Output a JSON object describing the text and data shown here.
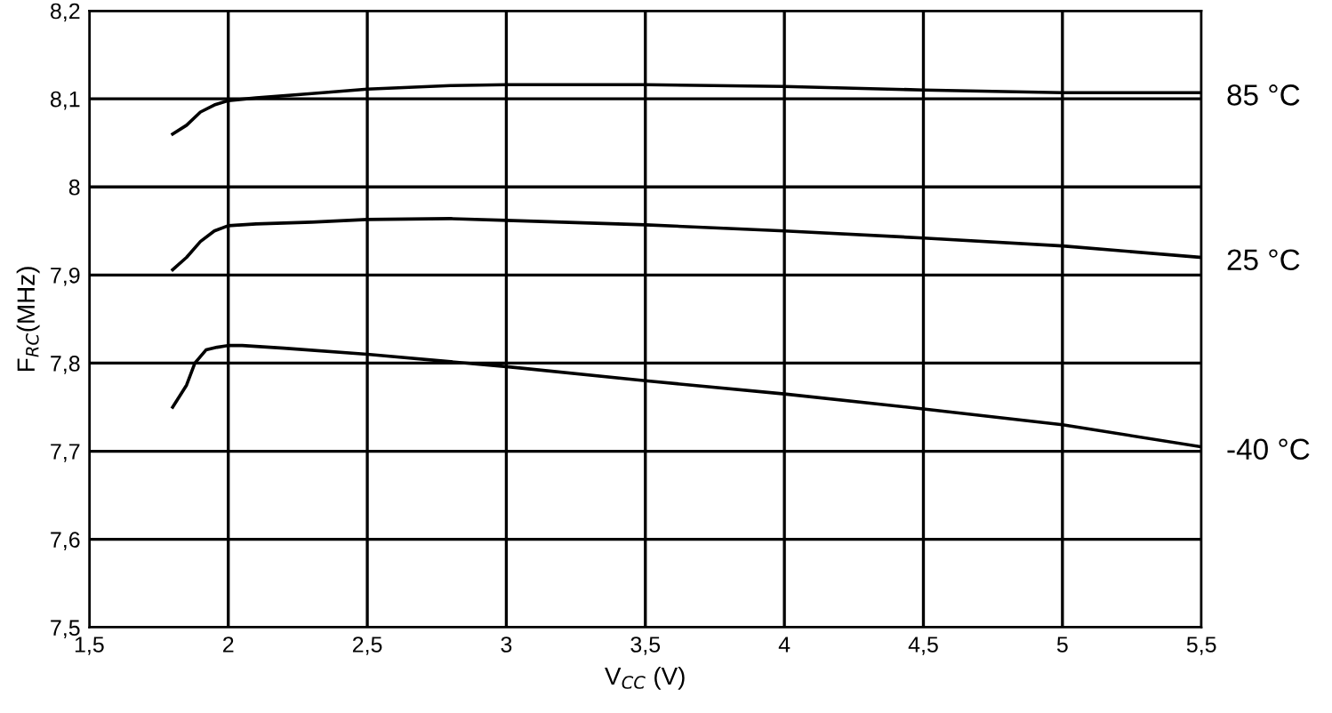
{
  "chart_data": {
    "type": "line",
    "xlabel": "V$_{CC}$ (V)",
    "ylabel": "F$_{RC}$(MHz)",
    "xlim": [
      1.5,
      5.5
    ],
    "xticks": [
      {
        "value": 1.5,
        "label": "1,5"
      },
      2,
      {
        "value": 2.5,
        "label": "2,5"
      },
      3,
      {
        "value": 3.5,
        "label": "3,5"
      },
      4,
      {
        "value": 4.5,
        "label": "4,5"
      },
      5,
      {
        "value": 5.5,
        "label": "5,5"
      }
    ],
    "ylim": [
      7.5,
      8.2
    ],
    "yticks": [
      {
        "value": 7.5,
        "label": "7,5"
      },
      {
        "value": 7.6,
        "label": "7,6"
      },
      {
        "value": 7.7,
        "label": "7,7"
      },
      {
        "value": 7.8,
        "label": "7,8"
      },
      {
        "value": 7.9,
        "label": "7,9"
      },
      8,
      {
        "value": 8.1,
        "label": "8,1"
      },
      {
        "value": 8.2,
        "label": "8,2"
      }
    ],
    "grid": true,
    "line_style": "solid",
    "marker": "none",
    "series": [
      {
        "name": "85 °C",
        "color": "#000000",
        "x": [
          1.8,
          1.85,
          1.9,
          1.95,
          2.0,
          2.1,
          2.3,
          2.5,
          2.8,
          3.0,
          3.5,
          4.0,
          4.5,
          5.0,
          5.5
        ],
        "values": [
          8.06,
          8.07,
          8.085,
          8.093,
          8.098,
          8.101,
          8.106,
          8.111,
          8.115,
          8.116,
          8.116,
          8.114,
          8.11,
          8.107,
          8.107
        ]
      },
      {
        "name": "25 °C",
        "color": "#000000",
        "x": [
          1.8,
          1.85,
          1.9,
          1.95,
          2.0,
          2.1,
          2.3,
          2.5,
          2.8,
          3.0,
          3.5,
          4.0,
          4.5,
          5.0,
          5.5
        ],
        "values": [
          7.906,
          7.92,
          7.938,
          7.95,
          7.956,
          7.958,
          7.96,
          7.963,
          7.964,
          7.962,
          7.957,
          7.95,
          7.942,
          7.933,
          7.92
        ]
      },
      {
        "name": "-40 °C",
        "color": "#000000",
        "x": [
          1.8,
          1.85,
          1.88,
          1.92,
          1.96,
          2.0,
          2.05,
          2.2,
          2.5,
          3.0,
          3.5,
          4.0,
          4.5,
          5.0,
          5.5
        ],
        "values": [
          7.75,
          7.775,
          7.8,
          7.815,
          7.818,
          7.82,
          7.82,
          7.817,
          7.81,
          7.796,
          7.78,
          7.765,
          7.748,
          7.73,
          7.705
        ]
      }
    ]
  }
}
